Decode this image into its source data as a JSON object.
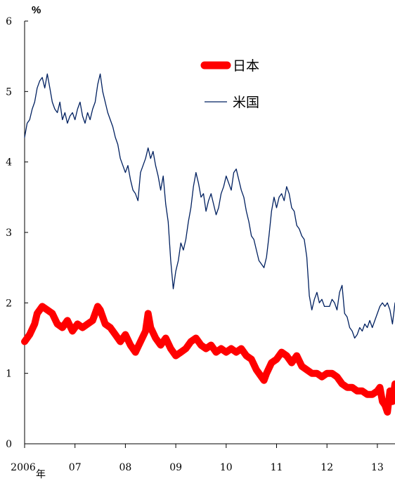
{
  "chart_data": {
    "type": "line",
    "y_unit_label": "%",
    "ylim": [
      0,
      6
    ],
    "y_ticks": [
      "0",
      "1",
      "2",
      "3",
      "4",
      "5",
      "6"
    ],
    "xlim": [
      2006.0,
      2013.35
    ],
    "x_ticks": [
      {
        "x": 2006,
        "label": "2006"
      },
      {
        "x": 2007,
        "label": "07"
      },
      {
        "x": 2008,
        "label": "08"
      },
      {
        "x": 2009,
        "label": "09"
      },
      {
        "x": 2010,
        "label": "10"
      },
      {
        "x": 2011,
        "label": "11"
      },
      {
        "x": 2012,
        "label": "12"
      },
      {
        "x": 2013,
        "label": "13"
      }
    ],
    "x_year_suffix": "年",
    "legend_position": "top-right",
    "grid": false,
    "series": [
      {
        "name": "日本",
        "color": "#ff0000",
        "style": "thick",
        "x": [
          2006.0,
          2006.1,
          2006.2,
          2006.25,
          2006.35,
          2006.45,
          2006.55,
          2006.65,
          2006.75,
          2006.85,
          2006.95,
          2007.05,
          2007.15,
          2007.25,
          2007.35,
          2007.45,
          2007.5,
          2007.6,
          2007.7,
          2007.8,
          2007.9,
          2008.0,
          2008.1,
          2008.2,
          2008.3,
          2008.4,
          2008.45,
          2008.5,
          2008.6,
          2008.7,
          2008.8,
          2008.9,
          2009.0,
          2009.1,
          2009.2,
          2009.3,
          2009.4,
          2009.5,
          2009.6,
          2009.7,
          2009.8,
          2009.9,
          2010.0,
          2010.1,
          2010.2,
          2010.3,
          2010.4,
          2010.5,
          2010.6,
          2010.7,
          2010.75,
          2010.8,
          2010.9,
          2011.0,
          2011.1,
          2011.2,
          2011.3,
          2011.4,
          2011.5,
          2011.6,
          2011.7,
          2011.8,
          2011.9,
          2012.0,
          2012.1,
          2012.2,
          2012.3,
          2012.4,
          2012.5,
          2012.6,
          2012.7,
          2012.8,
          2012.9,
          2013.0,
          2013.05,
          2013.1,
          2013.15,
          2013.2,
          2013.25,
          2013.3,
          2013.35
        ],
        "y": [
          1.45,
          1.55,
          1.7,
          1.85,
          1.95,
          1.9,
          1.85,
          1.7,
          1.65,
          1.75,
          1.6,
          1.7,
          1.65,
          1.7,
          1.75,
          1.95,
          1.9,
          1.7,
          1.65,
          1.55,
          1.45,
          1.55,
          1.4,
          1.3,
          1.45,
          1.6,
          1.85,
          1.65,
          1.5,
          1.4,
          1.5,
          1.35,
          1.25,
          1.3,
          1.35,
          1.45,
          1.5,
          1.4,
          1.35,
          1.4,
          1.3,
          1.35,
          1.3,
          1.35,
          1.3,
          1.35,
          1.25,
          1.2,
          1.05,
          0.95,
          0.9,
          1.0,
          1.15,
          1.2,
          1.3,
          1.25,
          1.15,
          1.25,
          1.1,
          1.05,
          1.0,
          1.0,
          0.95,
          1.0,
          1.0,
          0.95,
          0.85,
          0.8,
          0.8,
          0.75,
          0.75,
          0.7,
          0.7,
          0.75,
          0.8,
          0.6,
          0.55,
          0.45,
          0.75,
          0.6,
          0.85
        ]
      },
      {
        "name": "米国",
        "color": "#002060",
        "style": "thin",
        "x": [
          2006.0,
          2006.05,
          2006.1,
          2006.15,
          2006.2,
          2006.25,
          2006.3,
          2006.35,
          2006.4,
          2006.45,
          2006.5,
          2006.55,
          2006.6,
          2006.65,
          2006.7,
          2006.75,
          2006.8,
          2006.85,
          2006.9,
          2006.95,
          2007.0,
          2007.05,
          2007.1,
          2007.15,
          2007.2,
          2007.25,
          2007.3,
          2007.35,
          2007.4,
          2007.45,
          2007.5,
          2007.55,
          2007.6,
          2007.65,
          2007.7,
          2007.75,
          2007.8,
          2007.85,
          2007.9,
          2007.95,
          2008.0,
          2008.05,
          2008.1,
          2008.15,
          2008.2,
          2008.25,
          2008.3,
          2008.35,
          2008.4,
          2008.45,
          2008.5,
          2008.55,
          2008.6,
          2008.65,
          2008.7,
          2008.75,
          2008.8,
          2008.85,
          2008.9,
          2008.95,
          2009.0,
          2009.05,
          2009.1,
          2009.15,
          2009.2,
          2009.25,
          2009.3,
          2009.35,
          2009.4,
          2009.45,
          2009.5,
          2009.55,
          2009.6,
          2009.65,
          2009.7,
          2009.75,
          2009.8,
          2009.85,
          2009.9,
          2009.95,
          2010.0,
          2010.05,
          2010.1,
          2010.15,
          2010.2,
          2010.25,
          2010.3,
          2010.35,
          2010.4,
          2010.45,
          2010.5,
          2010.55,
          2010.6,
          2010.65,
          2010.7,
          2010.75,
          2010.8,
          2010.85,
          2010.9,
          2010.95,
          2011.0,
          2011.05,
          2011.1,
          2011.15,
          2011.2,
          2011.25,
          2011.3,
          2011.35,
          2011.4,
          2011.45,
          2011.5,
          2011.55,
          2011.6,
          2011.65,
          2011.7,
          2011.75,
          2011.8,
          2011.85,
          2011.9,
          2011.95,
          2012.0,
          2012.05,
          2012.1,
          2012.15,
          2012.2,
          2012.25,
          2012.3,
          2012.35,
          2012.4,
          2012.45,
          2012.5,
          2012.55,
          2012.6,
          2012.65,
          2012.7,
          2012.75,
          2012.8,
          2012.85,
          2012.9,
          2012.95,
          2013.0,
          2013.05,
          2013.1,
          2013.15,
          2013.2,
          2013.25,
          2013.3,
          2013.35
        ],
        "y": [
          4.35,
          4.55,
          4.6,
          4.75,
          4.85,
          5.05,
          5.15,
          5.2,
          5.05,
          5.25,
          5.05,
          4.85,
          4.75,
          4.7,
          4.85,
          4.6,
          4.7,
          4.55,
          4.65,
          4.7,
          4.6,
          4.75,
          4.85,
          4.65,
          4.55,
          4.7,
          4.6,
          4.75,
          4.85,
          5.1,
          5.25,
          5.0,
          4.85,
          4.7,
          4.6,
          4.5,
          4.35,
          4.25,
          4.05,
          3.95,
          3.85,
          3.95,
          3.75,
          3.6,
          3.55,
          3.45,
          3.85,
          3.95,
          4.05,
          4.2,
          4.05,
          4.15,
          3.95,
          3.8,
          3.6,
          3.8,
          3.4,
          3.15,
          2.6,
          2.2,
          2.45,
          2.6,
          2.85,
          2.75,
          2.9,
          3.15,
          3.35,
          3.65,
          3.85,
          3.7,
          3.5,
          3.55,
          3.3,
          3.45,
          3.55,
          3.4,
          3.25,
          3.35,
          3.55,
          3.65,
          3.8,
          3.7,
          3.6,
          3.85,
          3.9,
          3.75,
          3.6,
          3.5,
          3.3,
          3.15,
          2.95,
          2.9,
          2.75,
          2.6,
          2.55,
          2.5,
          2.65,
          2.95,
          3.3,
          3.5,
          3.35,
          3.5,
          3.55,
          3.45,
          3.65,
          3.55,
          3.35,
          3.3,
          3.1,
          3.05,
          2.95,
          2.9,
          2.65,
          2.1,
          1.9,
          2.05,
          2.15,
          2.0,
          2.05,
          1.95,
          1.95,
          1.95,
          2.05,
          2.0,
          1.9,
          2.15,
          2.25,
          1.85,
          1.8,
          1.65,
          1.6,
          1.5,
          1.55,
          1.65,
          1.6,
          1.7,
          1.65,
          1.75,
          1.65,
          1.75,
          1.85,
          1.95,
          2.0,
          1.95,
          2.0,
          1.9,
          1.7,
          2.0
        ]
      }
    ]
  }
}
